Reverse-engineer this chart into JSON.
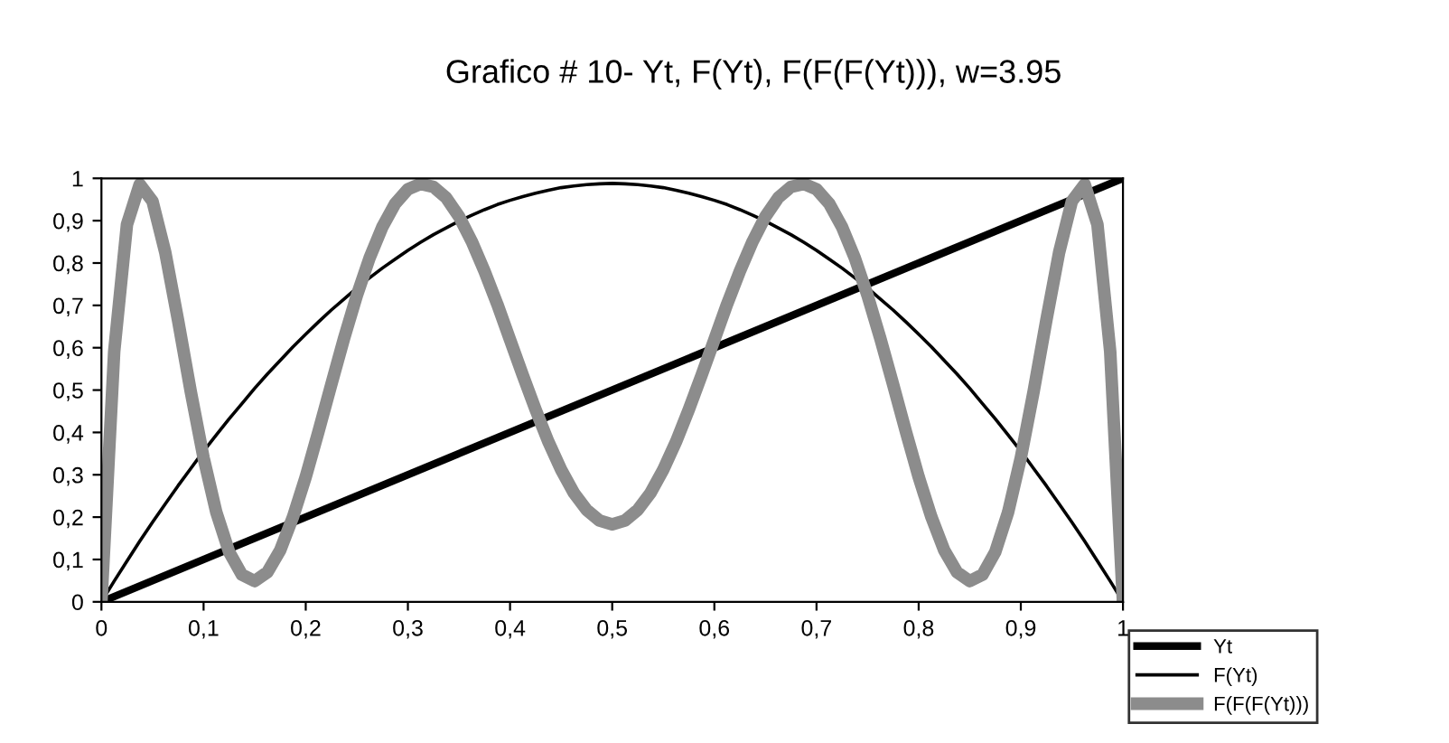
{
  "chart_data": {
    "type": "line",
    "title": "Grafico # 10- Yt, F(Yt), F(F(F(Yt))), w=3.95",
    "x": [
      0,
      0.0125,
      0.025,
      0.0375,
      0.05,
      0.0625,
      0.075,
      0.0875,
      0.1,
      0.1125,
      0.125,
      0.1375,
      0.15,
      0.1625,
      0.175,
      0.1875,
      0.2,
      0.2125,
      0.225,
      0.2375,
      0.25,
      0.2625,
      0.275,
      0.2875,
      0.3,
      0.3125,
      0.325,
      0.3375,
      0.35,
      0.3625,
      0.375,
      0.3875,
      0.4,
      0.4125,
      0.425,
      0.4375,
      0.45,
      0.4625,
      0.475,
      0.4875,
      0.5,
      0.5125,
      0.525,
      0.5375,
      0.55,
      0.5625,
      0.575,
      0.5875,
      0.6,
      0.6125,
      0.625,
      0.6375,
      0.65,
      0.6625,
      0.675,
      0.6875,
      0.7,
      0.7125,
      0.725,
      0.7375,
      0.75,
      0.7625,
      0.775,
      0.7875,
      0.8,
      0.8125,
      0.825,
      0.8375,
      0.85,
      0.8625,
      0.875,
      0.8875,
      0.9,
      0.9125,
      0.925,
      0.9375,
      0.95,
      0.9625,
      0.975,
      0.9875,
      1
    ],
    "series": [
      {
        "name": "Yt",
        "color": "#000000",
        "line_style": "solid",
        "x": [
          0,
          1
        ],
        "values": [
          0,
          1
        ]
      },
      {
        "name": "F(Yt)",
        "color": "#000000",
        "line_style": "solid",
        "values": [
          0,
          0.049,
          0.096,
          0.143,
          0.188,
          0.231,
          0.274,
          0.315,
          0.356,
          0.394,
          0.432,
          0.468,
          0.504,
          0.538,
          0.57,
          0.602,
          0.632,
          0.661,
          0.689,
          0.715,
          0.741,
          0.765,
          0.788,
          0.809,
          0.83,
          0.849,
          0.867,
          0.883,
          0.899,
          0.913,
          0.926,
          0.938,
          0.948,
          0.957,
          0.965,
          0.972,
          0.978,
          0.982,
          0.985,
          0.987,
          0.988,
          0.987,
          0.985,
          0.982,
          0.978,
          0.972,
          0.965,
          0.957,
          0.948,
          0.938,
          0.926,
          0.913,
          0.899,
          0.883,
          0.867,
          0.849,
          0.83,
          0.809,
          0.788,
          0.765,
          0.741,
          0.715,
          0.689,
          0.661,
          0.632,
          0.602,
          0.57,
          0.538,
          0.504,
          0.468,
          0.432,
          0.394,
          0.356,
          0.315,
          0.274,
          0.231,
          0.188,
          0.143,
          0.096,
          0.049,
          0
        ]
      },
      {
        "name": "F(F(F(Yt)))",
        "color": "#8c8c8c",
        "line_style": "solid",
        "values": [
          0,
          0.591,
          0.891,
          0.986,
          0.946,
          0.825,
          0.665,
          0.496,
          0.34,
          0.211,
          0.118,
          0.064,
          0.049,
          0.07,
          0.122,
          0.2,
          0.295,
          0.402,
          0.513,
          0.622,
          0.723,
          0.812,
          0.885,
          0.94,
          0.974,
          0.987,
          0.98,
          0.954,
          0.91,
          0.851,
          0.781,
          0.703,
          0.619,
          0.535,
          0.454,
          0.378,
          0.312,
          0.257,
          0.217,
          0.192,
          0.183,
          0.192,
          0.217,
          0.257,
          0.312,
          0.378,
          0.454,
          0.535,
          0.619,
          0.703,
          0.781,
          0.851,
          0.91,
          0.954,
          0.98,
          0.987,
          0.974,
          0.94,
          0.885,
          0.812,
          0.723,
          0.622,
          0.513,
          0.402,
          0.295,
          0.2,
          0.122,
          0.07,
          0.049,
          0.064,
          0.118,
          0.211,
          0.34,
          0.496,
          0.665,
          0.825,
          0.946,
          0.986,
          0.891,
          0.591,
          0
        ]
      }
    ],
    "xlim": [
      0,
      1
    ],
    "ylim": [
      0,
      1
    ],
    "xticks": [
      0,
      {
        "value": 0.1,
        "label": "0,1"
      },
      {
        "value": 0.2,
        "label": "0,2"
      },
      {
        "value": 0.3,
        "label": "0,3"
      },
      {
        "value": 0.4,
        "label": "0,4"
      },
      {
        "value": 0.5,
        "label": "0,5"
      },
      {
        "value": 0.6,
        "label": "0,6"
      },
      {
        "value": 0.7,
        "label": "0,7"
      },
      {
        "value": 0.8,
        "label": "0,8"
      },
      {
        "value": 0.9,
        "label": "0,9"
      },
      1
    ],
    "yticks": [
      0,
      {
        "value": 0.1,
        "label": "0,1"
      },
      {
        "value": 0.2,
        "label": "0,2"
      },
      {
        "value": 0.3,
        "label": "0,3"
      },
      {
        "value": 0.4,
        "label": "0,4"
      },
      {
        "value": 0.5,
        "label": "0,5"
      },
      {
        "value": 0.6,
        "label": "0,6"
      },
      {
        "value": 0.7,
        "label": "0,7"
      },
      {
        "value": 0.8,
        "label": "0,8"
      },
      {
        "value": 0.9,
        "label": "0,9"
      },
      1
    ],
    "legend": "bottom right",
    "grid": false,
    "marker": "none"
  }
}
